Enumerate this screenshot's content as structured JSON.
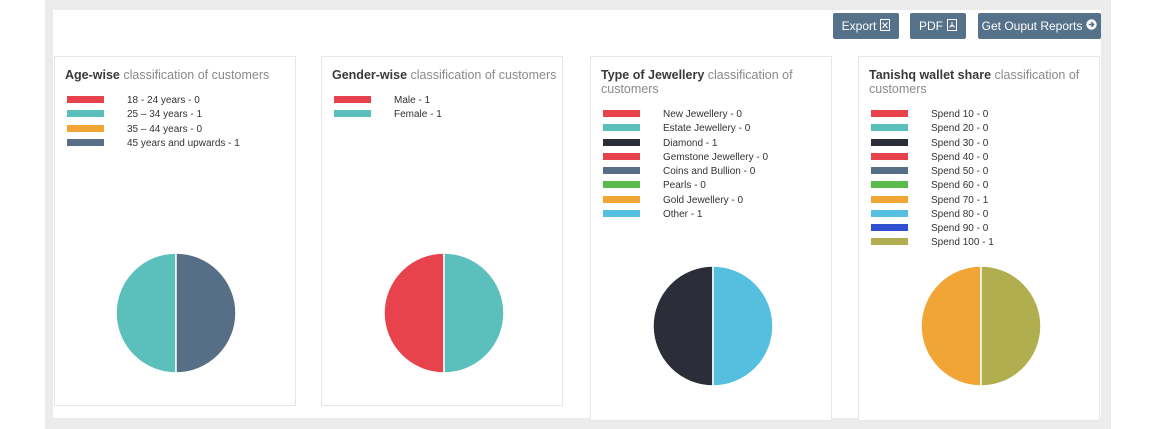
{
  "toolbar": {
    "export_label": "Export",
    "pdf_label": "PDF",
    "reports_label": "Get Ouput Reports"
  },
  "colors": {
    "button_bg": "#56718a",
    "card_border": "#e6e6e6"
  },
  "chart_data": [
    {
      "type": "pie",
      "title": "Age-wise",
      "subtitle": "classification of customers",
      "slices": [
        {
          "label": "18 - 24 years - 0",
          "value": 0,
          "color": "#e8424c"
        },
        {
          "label": "25 – 34 years - 1",
          "value": 1,
          "color": "#5bbfbb"
        },
        {
          "label": "35 – 44 years - 0",
          "value": 0,
          "color": "#f0a535"
        },
        {
          "label": "45 years and upwards - 1",
          "value": 1,
          "color": "#566f86"
        }
      ]
    },
    {
      "type": "pie",
      "title": "Gender-wise",
      "subtitle": "classification of customers",
      "slices": [
        {
          "label": "Male - 1",
          "value": 1,
          "color": "#e8424c"
        },
        {
          "label": "Female - 1",
          "value": 1,
          "color": "#5bbfbb"
        }
      ]
    },
    {
      "type": "pie",
      "title": "Type of Jewellery",
      "subtitle": "classification of customers",
      "slices": [
        {
          "label": "New Jewellery - 0",
          "value": 0,
          "color": "#e8424c"
        },
        {
          "label": "Estate Jewellery - 0",
          "value": 0,
          "color": "#5bbfbb"
        },
        {
          "label": "Diamond - 1",
          "value": 1,
          "color": "#2b2d38"
        },
        {
          "label": "Gemstone Jewellery - 0",
          "value": 0,
          "color": "#e8424c"
        },
        {
          "label": "Coins and Bullion - 0",
          "value": 0,
          "color": "#566f86"
        },
        {
          "label": "Pearls - 0",
          "value": 0,
          "color": "#5bba4d"
        },
        {
          "label": "Gold Jewellery - 0",
          "value": 0,
          "color": "#f0a535"
        },
        {
          "label": "Other - 1",
          "value": 1,
          "color": "#55bfe0"
        }
      ]
    },
    {
      "type": "pie",
      "title": "Tanishq wallet share",
      "subtitle": "classification of customers",
      "slices": [
        {
          "label": "Spend 10 - 0",
          "value": 0,
          "color": "#e8424c"
        },
        {
          "label": "Spend 20 - 0",
          "value": 0,
          "color": "#5bbfbb"
        },
        {
          "label": "Spend 30 - 0",
          "value": 0,
          "color": "#2b2d38"
        },
        {
          "label": "Spend 40 - 0",
          "value": 0,
          "color": "#e8424c"
        },
        {
          "label": "Spend 50 - 0",
          "value": 0,
          "color": "#566f86"
        },
        {
          "label": "Spend 60 - 0",
          "value": 0,
          "color": "#5bba4d"
        },
        {
          "label": "Spend 70 - 1",
          "value": 1,
          "color": "#f0a535"
        },
        {
          "label": "Spend 80 - 0",
          "value": 0,
          "color": "#55bfe0"
        },
        {
          "label": "Spend 90 - 0",
          "value": 0,
          "color": "#2f4fd0"
        },
        {
          "label": "Spend 100 - 1",
          "value": 1,
          "color": "#b0ae4e"
        }
      ]
    }
  ]
}
